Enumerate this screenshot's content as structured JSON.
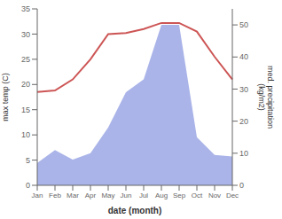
{
  "chart_data": {
    "type": "line",
    "categories": [
      "Jan",
      "Feb",
      "Mar",
      "Apr",
      "May",
      "Jun",
      "Jul",
      "Aug",
      "Sep",
      "Oct",
      "Nov",
      "Dec"
    ],
    "xlabel": "date (month)",
    "ylabel": "max temp (C)",
    "y2label": "med. precipitation\n(kg/m2)",
    "ylim": [
      0,
      35
    ],
    "yticks": [
      0,
      5,
      10,
      15,
      20,
      25,
      30,
      35
    ],
    "y2lim": [
      0,
      55
    ],
    "y2ticks": [
      0,
      10,
      20,
      30,
      40,
      50
    ],
    "grid": false,
    "series": [
      {
        "type": "area",
        "axis": "y2",
        "color": "#aab4e8",
        "values": [
          7,
          11,
          8,
          10,
          18,
          29,
          33,
          50,
          50,
          15,
          9.5,
          9
        ]
      },
      {
        "type": "line",
        "color": "#cd5555",
        "values": [
          18.5,
          18.8,
          21.0,
          25.0,
          30.0,
          30.2,
          31.0,
          32.2,
          32.2,
          30.5,
          25.5,
          21.0
        ]
      }
    ]
  }
}
